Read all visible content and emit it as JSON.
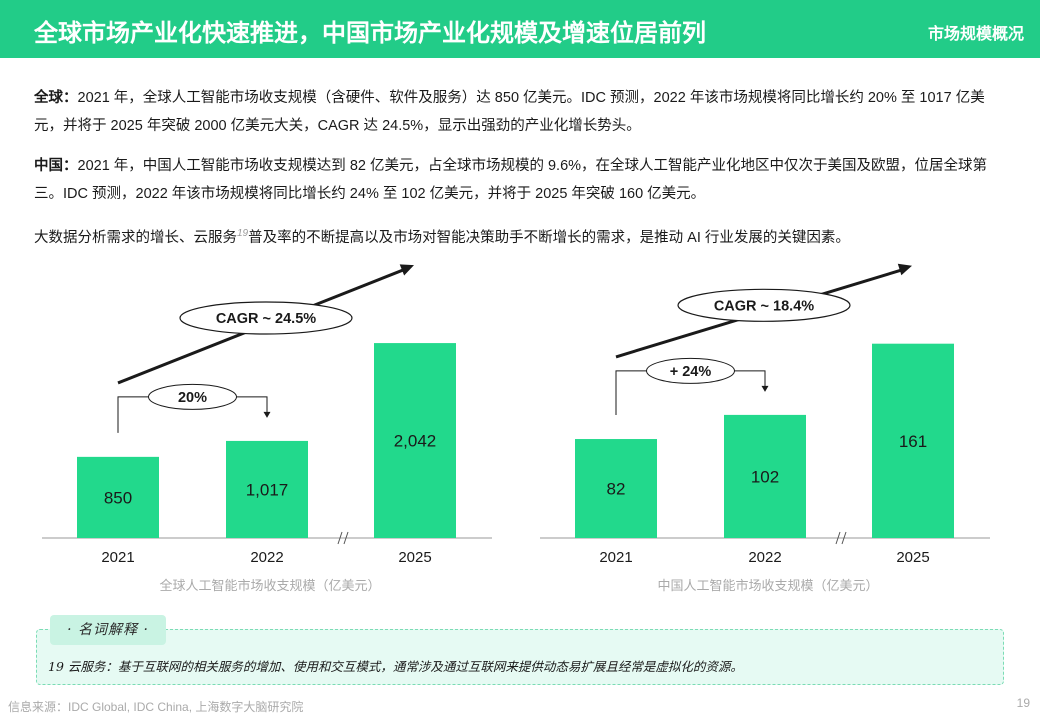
{
  "header": {
    "title": "全球市场产业化快速推进，中国市场产业化规模及增速位居前列",
    "section": "市场规模概况"
  },
  "paragraphs": {
    "global_label": "全球：",
    "global_text": "2021 年，全球人工智能市场收支规模（含硬件、软件及服务）达 850 亿美元。IDC 预测，2022 年该市场规模将同比增长约 20% 至 1017 亿美元，并将于 2025 年突破 2000 亿美元大关，CAGR 达 24.5%，显示出强劲的产业化增长势头。",
    "china_label": "中国：",
    "china_text": "2021 年，中国人工智能市场收支规模达到 82 亿美元，占全球市场规模的 9.6%，在全球人工智能产业化地区中仅次于美国及欧盟，位居全球第三。IDC 预测，2022 年该市场规模将同比增长约 24% 至 102 亿美元，并将于 2025 年突破 160 亿美元。",
    "drivers_before": "大数据分析需求的增长、云服务",
    "drivers_sup": "19",
    "drivers_after": "普及率的不断提高以及市场对智能决策助手不断增长的需求，是推动 AI 行业发展的关键因素。"
  },
  "chart_data": [
    {
      "type": "bar",
      "title": "全球人工智能市场收支规模（亿美元）",
      "categories": [
        "2021",
        "2022",
        "2025"
      ],
      "values": [
        850,
        1017,
        2042
      ],
      "value_labels": [
        "850",
        "1,017",
        "2,042"
      ],
      "ylim": [
        0,
        2200
      ],
      "bar_color": "#22d98c",
      "axis_break": "//",
      "growth_label": "20%",
      "cagr_label": "CAGR ~ 24.5%"
    },
    {
      "type": "bar",
      "title": "中国人工智能市场收支规模（亿美元）",
      "categories": [
        "2021",
        "2022",
        "2025"
      ],
      "values": [
        82,
        102,
        161
      ],
      "value_labels": [
        "82",
        "102",
        "161"
      ],
      "ylim": [
        0,
        174
      ],
      "bar_color": "#22d98c",
      "axis_break": "//",
      "growth_label": "+ 24%",
      "cagr_label": "CAGR ~ 18.4%"
    }
  ],
  "glossary": {
    "tag": "· 名词解释 ·",
    "entry": "19 云服务：基于互联网的相关服务的增加、使用和交互模式，通常涉及通过互联网来提供动态易扩展且经常是虚拟化的资源。"
  },
  "footer": {
    "source": "信息来源：IDC Global, IDC China, 上海数字大脑研究院",
    "page": "19"
  }
}
